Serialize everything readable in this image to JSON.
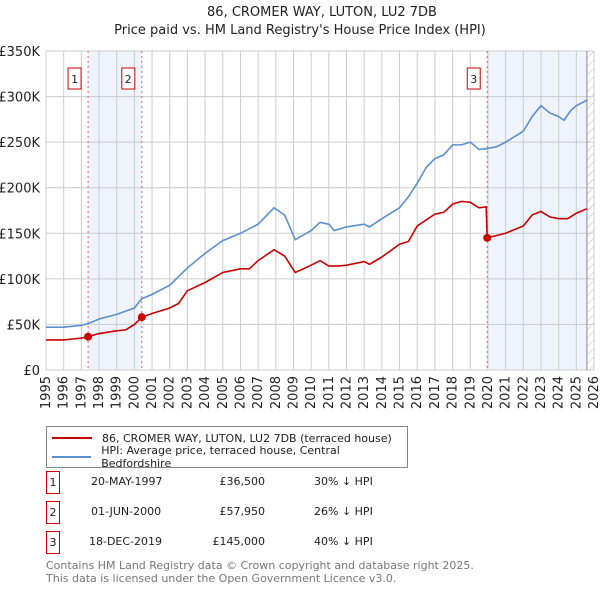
{
  "chart_data": {
    "type": "line",
    "title": "86, CROMER WAY, LUTON, LU2 7DB",
    "subtitle": "Price paid vs. HM Land Registry's House Price Index (HPI)",
    "xlim": [
      1995,
      2026
    ],
    "ylim": [
      0,
      350000
    ],
    "yticks": [
      {
        "v": 0,
        "label": "£0"
      },
      {
        "v": 50000,
        "label": "£50K"
      },
      {
        "v": 100000,
        "label": "£100K"
      },
      {
        "v": 150000,
        "label": "£150K"
      },
      {
        "v": 200000,
        "label": "£200K"
      },
      {
        "v": 250000,
        "label": "£250K"
      },
      {
        "v": 300000,
        "label": "£300K"
      },
      {
        "v": 350000,
        "label": "£350K"
      }
    ],
    "xticks": [
      "1995",
      "1996",
      "1997",
      "1998",
      "1999",
      "2000",
      "2001",
      "2002",
      "2003",
      "2004",
      "2005",
      "2006",
      "2007",
      "2008",
      "2009",
      "2010",
      "2011",
      "2012",
      "2013",
      "2014",
      "2015",
      "2016",
      "2017",
      "2018",
      "2019",
      "2020",
      "2021",
      "2022",
      "2023",
      "2024",
      "2025",
      "2026"
    ],
    "grid": true,
    "shaded_ranges": [
      [
        1997.38,
        2000.42
      ],
      [
        2019.96,
        2025.6
      ]
    ],
    "hatched_after": 2025.6,
    "series": [
      {
        "name": "86, CROMER WAY, LUTON, LU2 7DB (terraced house)",
        "color": "#cc0000",
        "x": [
          1995,
          1996,
          1996.5,
          1997,
          1997.38,
          1998,
          1999,
          1999.5,
          2000,
          2000.42,
          2001,
          2002,
          2002.5,
          2003,
          2004,
          2005,
          2006,
          2006.5,
          2007,
          2007.9,
          2008.5,
          2009.1,
          2010,
          2010.5,
          2011,
          2011.5,
          2012,
          2013,
          2013.3,
          2014,
          2015,
          2015.5,
          2016,
          2017,
          2017.5,
          2018,
          2018.5,
          2019,
          2019.5,
          2019.9,
          2019.96,
          2021,
          2022,
          2022.5,
          2023,
          2023.5,
          2024,
          2024.5,
          2025,
          2025.6
        ],
        "y": [
          33000,
          33000,
          34000,
          35000,
          36500,
          40000,
          43000,
          44000,
          50000,
          57950,
          62000,
          68000,
          73000,
          87000,
          96000,
          107000,
          111000,
          111000,
          120000,
          132000,
          125000,
          107000,
          115000,
          120000,
          114000,
          114000,
          115000,
          119000,
          116000,
          124000,
          138000,
          141000,
          158000,
          171000,
          173000,
          182000,
          185000,
          184000,
          178000,
          179000,
          145000,
          150000,
          158000,
          170000,
          174000,
          168000,
          166000,
          166000,
          172000,
          177000
        ]
      },
      {
        "name": "HPI: Average price, terraced house, Central Bedfordshire",
        "color": "#5b8fd0",
        "x": [
          1995,
          1996,
          1997,
          1997.4,
          1998,
          1999,
          2000,
          2000.4,
          2001,
          2002,
          2003,
          2004,
          2005,
          2006,
          2007,
          2007.9,
          2008.5,
          2009.1,
          2010,
          2010.5,
          2011,
          2011.3,
          2012,
          2013,
          2013.3,
          2014,
          2015,
          2015.5,
          2016,
          2016.5,
          2017,
          2017.5,
          2018,
          2018.5,
          2019,
          2019.5,
          2019.96,
          2020.5,
          2021,
          2022,
          2022.5,
          2023,
          2023.5,
          2024,
          2024.3,
          2024.7,
          2025,
          2025.6
        ],
        "y": [
          47000,
          47000,
          49000,
          51000,
          56000,
          61000,
          68000,
          78000,
          83000,
          93000,
          112000,
          128000,
          142000,
          150000,
          160000,
          178000,
          170000,
          143000,
          153000,
          162000,
          160000,
          153000,
          157000,
          160000,
          157000,
          166000,
          178000,
          190000,
          205000,
          222000,
          232000,
          236000,
          247000,
          247000,
          250000,
          242000,
          243000,
          245000,
          250000,
          262000,
          278000,
          290000,
          282000,
          278000,
          274000,
          285000,
          290000,
          296000
        ]
      }
    ],
    "sales": [
      {
        "label": "1",
        "x": 1997.38,
        "y": 36500,
        "date": "20-MAY-1997",
        "price": "£36,500",
        "hpi": "30% ↓ HPI"
      },
      {
        "label": "2",
        "x": 2000.42,
        "y": 57950,
        "date": "01-JUN-2000",
        "price": "£57,950",
        "hpi": "26% ↓ HPI"
      },
      {
        "label": "3",
        "x": 2019.96,
        "y": 145000,
        "date": "18-DEC-2019",
        "price": "£145,000",
        "hpi": "40% ↓ HPI"
      }
    ]
  },
  "legend": {
    "red": "86, CROMER WAY, LUTON, LU2 7DB (terraced house)",
    "blue": "HPI: Average price, terraced house, Central Bedfordshire"
  },
  "footer": {
    "line1": "Contains HM Land Registry data © Crown copyright and database right 2025.",
    "line2": "This data is licensed under the Open Government Licence v3.0."
  }
}
